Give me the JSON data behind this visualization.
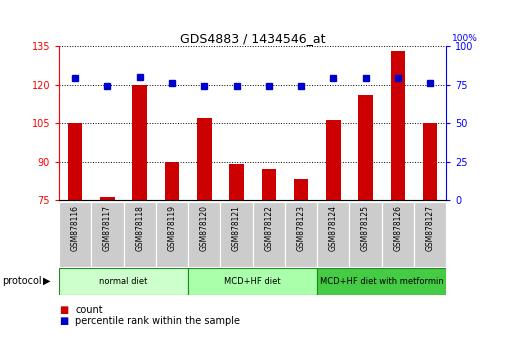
{
  "title": "GDS4883 / 1434546_at",
  "categories": [
    "GSM878116",
    "GSM878117",
    "GSM878118",
    "GSM878119",
    "GSM878120",
    "GSM878121",
    "GSM878122",
    "GSM878123",
    "GSM878124",
    "GSM878125",
    "GSM878126",
    "GSM878127"
  ],
  "bar_values": [
    105,
    76,
    120,
    90,
    107,
    89,
    87,
    83,
    106,
    116,
    133,
    105
  ],
  "percentile_values": [
    79,
    74,
    80,
    76,
    74,
    74,
    74,
    74,
    79,
    79,
    79,
    76
  ],
  "bar_color": "#cc0000",
  "percentile_color": "#0000cc",
  "ylim_left": [
    75,
    135
  ],
  "ylim_right": [
    0,
    100
  ],
  "yticks_left": [
    75,
    90,
    105,
    120,
    135
  ],
  "yticks_right": [
    0,
    25,
    50,
    75,
    100
  ],
  "groups": [
    {
      "label": "normal diet",
      "start": 0,
      "end": 4,
      "color": "#ccffcc"
    },
    {
      "label": "MCD+HF diet",
      "start": 4,
      "end": 8,
      "color": "#aaffaa"
    },
    {
      "label": "MCD+HF diet with metformin",
      "start": 8,
      "end": 12,
      "color": "#44cc44"
    }
  ],
  "legend_items": [
    {
      "label": "count",
      "color": "#cc0000"
    },
    {
      "label": "percentile rank within the sample",
      "color": "#0000cc"
    }
  ],
  "background_color": "#ffffff",
  "plot_bg_color": "#ffffff",
  "tick_label_bg": "#cccccc",
  "group_border_color": "#228822"
}
